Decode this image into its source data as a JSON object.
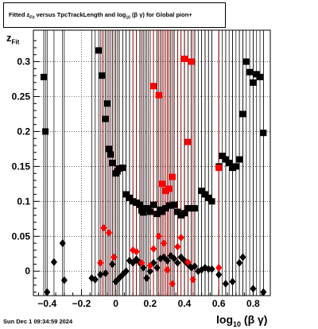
{
  "chart_data": {
    "type": "scatter",
    "title_parts": {
      "t1": "Fitted  z",
      "t1_sub": "Fit",
      "t2": "  versus TpcTrackLength and log",
      "t2_sub": "10",
      "t3": " (β  γ) for Global pion+"
    },
    "xlabel_parts": {
      "main": "log",
      "sub": "10",
      "rest": "(β γ)"
    },
    "ylabel_parts": {
      "main": "z",
      "sub": "Fit"
    },
    "footer": "Sun Dec  1 09:34:59 2024",
    "xlim": [
      -0.48,
      0.9
    ],
    "ylim": [
      -0.035,
      0.345
    ],
    "xticks": [
      -0.4,
      -0.2,
      0,
      0.2,
      0.4,
      0.6,
      0.8
    ],
    "xtick_labels": [
      "−0.4",
      "−0.2",
      "0",
      "0.2",
      "0.4",
      "0.6",
      "0.8"
    ],
    "yticks": [
      0,
      0.05,
      0.1,
      0.15,
      0.2,
      0.25,
      0.3
    ],
    "ytick_labels": [
      "0",
      "0.05",
      "0.1",
      "0.15",
      "0.2",
      "0.25",
      "0.3"
    ],
    "grid": true,
    "series": [
      {
        "marker": "square",
        "color": "#000000",
        "x": [
          -0.42,
          -0.41,
          -0.1,
          -0.08,
          -0.06,
          -0.05,
          -0.04,
          -0.03,
          -0.02,
          0.0,
          0.01,
          0.02,
          0.04,
          0.06,
          0.08,
          0.1,
          0.12,
          0.14,
          0.15,
          0.16,
          0.17,
          0.19,
          0.2,
          0.22,
          0.24,
          0.26,
          0.27,
          0.29,
          0.31,
          0.32,
          0.34,
          0.36,
          0.38,
          0.4,
          0.42,
          0.44,
          0.46,
          0.5,
          0.52,
          0.54,
          0.56,
          0.6,
          0.62,
          0.64,
          0.66,
          0.68,
          0.7,
          0.72,
          0.74,
          0.76,
          0.78,
          0.8,
          0.82,
          0.84,
          0.86
        ],
        "y": [
          0.278,
          0.2,
          0.316,
          0.28,
          0.218,
          0.24,
          0.175,
          0.167,
          0.155,
          0.14,
          0.143,
          0.147,
          0.148,
          0.11,
          0.105,
          0.1,
          0.098,
          0.095,
          0.087,
          0.084,
          0.09,
          0.09,
          0.085,
          0.095,
          0.082,
          0.088,
          0.085,
          0.09,
          0.094,
          0.094,
          0.095,
          0.085,
          0.08,
          0.083,
          0.09,
          0.09,
          0.09,
          0.115,
          0.11,
          0.105,
          0.1,
          0.15,
          0.165,
          0.16,
          0.155,
          0.148,
          0.15,
          0.16,
          0.225,
          0.3,
          0.285,
          0.27,
          0.282,
          0.278,
          0.198
        ]
      },
      {
        "marker": "square",
        "color": "#ff0000",
        "x": [
          0.22,
          0.25,
          0.27,
          0.29,
          0.31,
          0.33,
          0.4,
          0.42,
          0.44,
          0.6
        ],
        "y": [
          0.265,
          0.252,
          0.125,
          0.115,
          0.118,
          0.135,
          0.304,
          0.185,
          0.3,
          0.148
        ]
      },
      {
        "marker": "diamond",
        "color": "#000000",
        "x": [
          -0.4,
          -0.36,
          -0.31,
          -0.3,
          -0.14,
          -0.12,
          -0.09,
          -0.06,
          -0.02,
          0.0,
          0.02,
          0.04,
          0.06,
          0.08,
          0.1,
          0.12,
          0.14,
          0.16,
          0.18,
          0.2,
          0.22,
          0.24,
          0.26,
          0.28,
          0.3,
          0.32,
          0.34,
          0.36,
          0.38,
          0.4,
          0.42,
          0.44,
          0.46,
          0.48,
          0.5,
          0.52,
          0.54,
          0.56,
          0.6,
          0.64,
          0.68,
          0.72,
          0.74,
          0.8,
          0.86
        ],
        "y": [
          -0.03,
          0.013,
          0.04,
          -0.013,
          -0.01,
          -0.012,
          -0.005,
          -0.003,
          0.01,
          -0.015,
          -0.01,
          -0.005,
          0.0,
          0.015,
          0.012,
          0.017,
          0.012,
          0.005,
          -0.01,
          0.0,
          0.012,
          0.005,
          0.018,
          0.02,
          0.015,
          0.022,
          0.018,
          0.012,
          0.02,
          0.015,
          0.01,
          0.005,
          0.007,
          0.0,
          0.002,
          0.005,
          0.003,
          0.003,
          -0.005,
          -0.018,
          -0.015,
          0.012,
          0.02,
          -0.025,
          -0.03
        ]
      },
      {
        "marker": "diamond",
        "color": "#ff0000",
        "x": [
          -0.09,
          -0.07,
          -0.04,
          -0.01,
          0.1,
          0.12,
          0.15,
          0.2,
          0.22,
          0.25,
          0.28,
          0.3,
          0.33,
          0.36,
          0.38,
          0.42,
          0.45,
          0.6
        ],
        "y": [
          0.012,
          0.062,
          0.055,
          0.02,
          0.03,
          0.028,
          0.012,
          0.008,
          0.032,
          0.05,
          0.04,
          0.002,
          -0.018,
          0.035,
          0.048,
          0.013,
          -0.012,
          0.005
        ]
      }
    ]
  }
}
